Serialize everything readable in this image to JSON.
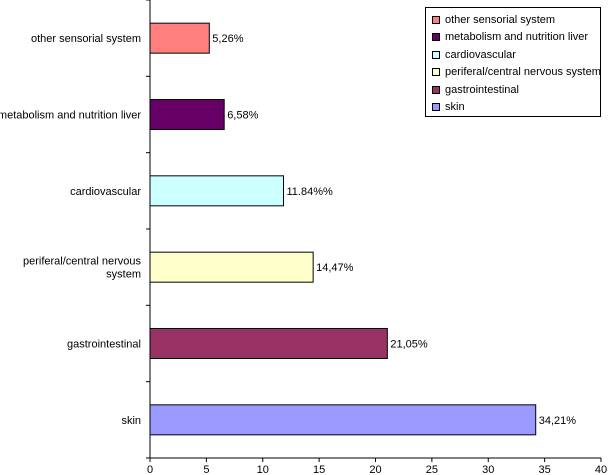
{
  "chart_data": {
    "type": "bar",
    "orientation": "horizontal",
    "categories": [
      "other sensorial system",
      "metabolism and nutrition liver",
      "cardiovascular",
      "periferal/central nervous system",
      "gastrointestinal",
      "skin"
    ],
    "category_lines": [
      [
        "other sensorial system"
      ],
      [
        "metabolism and nutrition liver"
      ],
      [
        "cardiovascular"
      ],
      [
        "periferal/central nervous",
        "system"
      ],
      [
        "gastrointestinal"
      ],
      [
        "skin"
      ]
    ],
    "values": [
      5.26,
      6.58,
      11.84,
      14.47,
      21.05,
      34.21
    ],
    "data_labels": [
      "5,26%",
      "6,58%",
      "11.84%%",
      "14,47%",
      "21,05%",
      "34,21%"
    ],
    "colors": [
      "#ff7f7f",
      "#660066",
      "#ccffff",
      "#ffffcc",
      "#993366",
      "#9999ff"
    ],
    "xlim": [
      0,
      40
    ],
    "x_ticks": [
      0,
      5,
      10,
      15,
      20,
      25,
      30,
      35,
      40
    ],
    "title": "",
    "xlabel": "",
    "ylabel": "",
    "grid": false,
    "legend": {
      "placement": "top-right",
      "entries": [
        "other sensorial system",
        "metabolism and nutrition liver",
        "cardiovascular",
        "periferal/central nervous system",
        "gastrointestinal",
        "skin"
      ]
    }
  }
}
